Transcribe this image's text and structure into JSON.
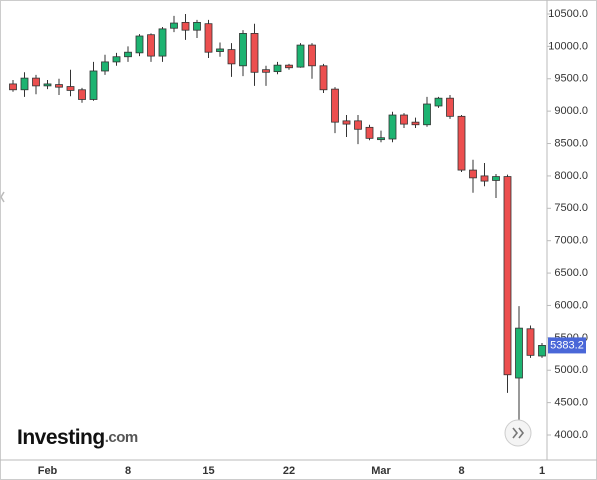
{
  "chart_data": {
    "type": "candlestick",
    "categories": [
      null,
      null,
      null,
      "Feb",
      null,
      null,
      null,
      null,
      null,
      null,
      "8",
      null,
      null,
      null,
      null,
      null,
      null,
      "15",
      null,
      null,
      null,
      null,
      null,
      null,
      "22",
      null,
      null,
      null,
      null,
      null,
      null,
      null,
      "Mar",
      null,
      null,
      null,
      null,
      null,
      null,
      "8",
      null,
      null,
      null,
      null,
      null,
      null,
      "1"
    ],
    "open": [
      9420,
      9330,
      9510,
      9390,
      9410,
      9380,
      9330,
      9180,
      9620,
      9760,
      9840,
      9900,
      10180,
      9850,
      10280,
      10370,
      10250,
      10350,
      9920,
      9950,
      9700,
      10200,
      9640,
      9610,
      9710,
      9680,
      10020,
      9700,
      9340,
      8850,
      8850,
      8750,
      8560,
      8570,
      8940,
      8830,
      8790,
      9080,
      9200,
      8920,
      8090,
      8000,
      7930,
      7990,
      4880,
      5640,
      5220
    ],
    "high": [
      9480,
      9600,
      9560,
      9480,
      9500,
      9640,
      9360,
      9760,
      9870,
      9900,
      10000,
      10190,
      10200,
      10300,
      10470,
      10500,
      10410,
      10410,
      10060,
      10050,
      10250,
      10350,
      9700,
      9760,
      9730,
      10050,
      10050,
      9730,
      9370,
      8940,
      8940,
      8790,
      8700,
      8990,
      8970,
      8900,
      9220,
      9220,
      9250,
      8940,
      8250,
      8200,
      8030,
      8020,
      5990,
      5690,
      5420
    ],
    "low": [
      9300,
      9220,
      9260,
      9340,
      9250,
      9230,
      9130,
      9160,
      9560,
      9700,
      9760,
      9850,
      9760,
      9760,
      10220,
      10100,
      10130,
      9820,
      9840,
      9530,
      9540,
      9390,
      9390,
      9570,
      9640,
      9670,
      9500,
      9280,
      8660,
      8600,
      8490,
      8550,
      8520,
      8520,
      8740,
      8740,
      8760,
      9050,
      8880,
      8060,
      7740,
      7840,
      7660,
      4650,
      4150,
      5190,
      5190
    ],
    "close": [
      9330,
      9510,
      9390,
      9420,
      9370,
      9320,
      9180,
      9620,
      9760,
      9840,
      9910,
      10160,
      9850,
      10270,
      10360,
      10250,
      10370,
      9910,
      9960,
      9730,
      10200,
      9600,
      9600,
      9710,
      9670,
      10020,
      9700,
      9330,
      8830,
      8800,
      8720,
      8580,
      8590,
      8940,
      8800,
      8790,
      9110,
      9200,
      8920,
      8090,
      7970,
      7920,
      7990,
      4930,
      5650,
      5230,
      5383.2
    ],
    "up_color": "#1db371",
    "down_color": "#ec4f4f",
    "price_label_color": "#4a67d8",
    "ylim": [
      3645,
      10685
    ],
    "yticks": [
      {
        "value": 4000,
        "label": "4000.0"
      },
      {
        "value": 4500,
        "label": "4500.0"
      },
      {
        "value": 5000,
        "label": "5000.0"
      },
      {
        "value": 5500,
        "label": "5500.0"
      },
      {
        "value": 6000,
        "label": "6000.0"
      },
      {
        "value": 6500,
        "label": "6500.0"
      },
      {
        "value": 7000,
        "label": "7000.0"
      },
      {
        "value": 7500,
        "label": "7500.0"
      },
      {
        "value": 8000,
        "label": "8000.0"
      },
      {
        "value": 8500,
        "label": "8500.0"
      },
      {
        "value": 9000,
        "label": "9000.0"
      },
      {
        "value": 9500,
        "label": "9500.0"
      },
      {
        "value": 10000,
        "label": "10000.0"
      },
      {
        "value": 10500,
        "label": "10500.0"
      }
    ],
    "grid": false,
    "brand": "Investing",
    "brand_suffix": ".com"
  }
}
